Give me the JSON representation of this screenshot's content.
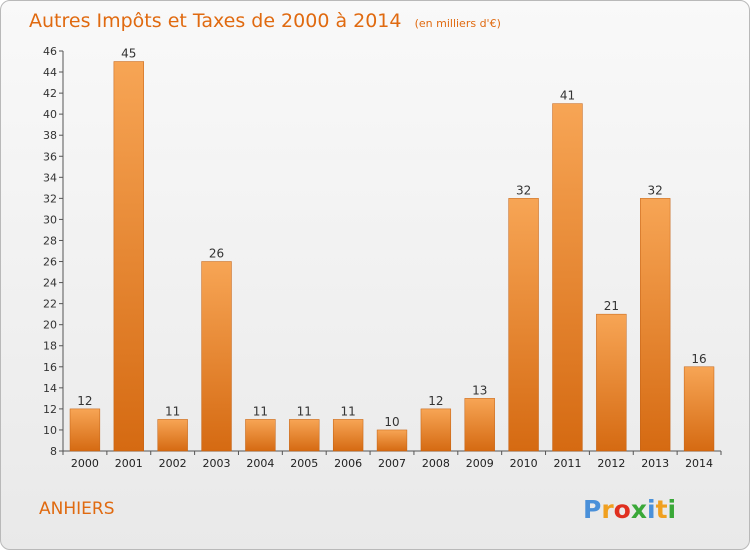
{
  "chart_data": {
    "type": "bar",
    "title": "Autres Impôts et Taxes de 2000 à 2014",
    "subtitle": "(en milliers d'€)",
    "categories": [
      "2000",
      "2001",
      "2002",
      "2003",
      "2004",
      "2005",
      "2006",
      "2007",
      "2008",
      "2009",
      "2010",
      "2011",
      "2012",
      "2013",
      "2014"
    ],
    "values": [
      12,
      45,
      11,
      26,
      11,
      11,
      11,
      10,
      12,
      13,
      32,
      41,
      21,
      32,
      16
    ],
    "ylim": [
      8,
      46
    ],
    "yticks": [
      8,
      10,
      12,
      14,
      16,
      18,
      20,
      22,
      24,
      26,
      28,
      30,
      32,
      34,
      36,
      38,
      40,
      42,
      44,
      46
    ],
    "grid": false,
    "bar_color": "#f08c30"
  },
  "commune": "ANHIERS",
  "logo": {
    "letters": [
      "P",
      "r",
      "o",
      "x",
      "i",
      "t",
      "i"
    ],
    "colors": [
      "#4a90d9",
      "#f0a020",
      "#e03020",
      "#3aa838",
      "#4a90d9",
      "#f0a020",
      "#3aa838"
    ]
  }
}
